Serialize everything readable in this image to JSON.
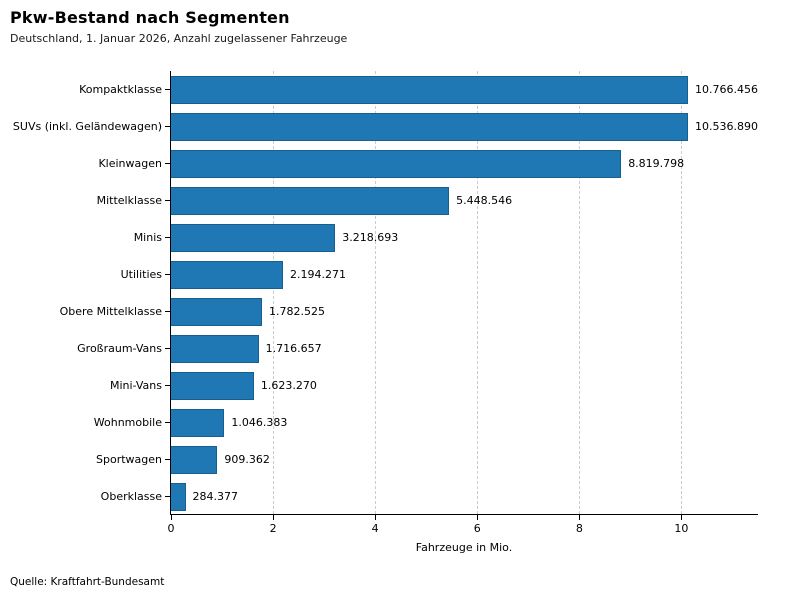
{
  "header": {
    "title": "Pkw-Bestand nach Segmenten",
    "subtitle": "Deutschland, 1. Januar 2026, Anzahl zugelassener Fahrzeuge"
  },
  "footer": {
    "source": "Quelle: Kraftfahrt-Bundesamt"
  },
  "chart_data": {
    "type": "bar",
    "orientation": "horizontal",
    "title": "Pkw-Bestand nach Segmenten",
    "subtitle": "Deutschland, 1. Januar 2026, Anzahl zugelassener Fahrzeuge",
    "categories": [
      "Kompaktklasse",
      "SUVs (inkl. Geländewagen)",
      "Kleinwagen",
      "Mittelklasse",
      "Minis",
      "Utilities",
      "Obere Mittelklasse",
      "Großraum-Vans",
      "Mini-Vans",
      "Wohnmobile",
      "Sportwagen",
      "Oberklasse"
    ],
    "values": [
      10766456,
      10536890,
      8819798,
      5448546,
      3218693,
      2194271,
      1782525,
      1716657,
      1623270,
      1046383,
      909362,
      284377
    ],
    "value_labels": [
      "10.766.456",
      "10.536.890",
      "8.819.798",
      "5.448.546",
      "3.218.693",
      "2.194.271",
      "1.782.525",
      "1.716.657",
      "1.623.270",
      "1.046.383",
      "909.362",
      "284.377"
    ],
    "xlabel": "Fahrzeuge in Mio.",
    "ylabel": "",
    "x_ticks": [
      0,
      2,
      4,
      6,
      8,
      10
    ],
    "xlim": [
      0,
      11.5
    ],
    "unit_divisor": 1000000,
    "bar_color": "#1f77b4",
    "grid": true,
    "legend": false,
    "source": "Quelle: Kraftfahrt-Bundesamt"
  }
}
